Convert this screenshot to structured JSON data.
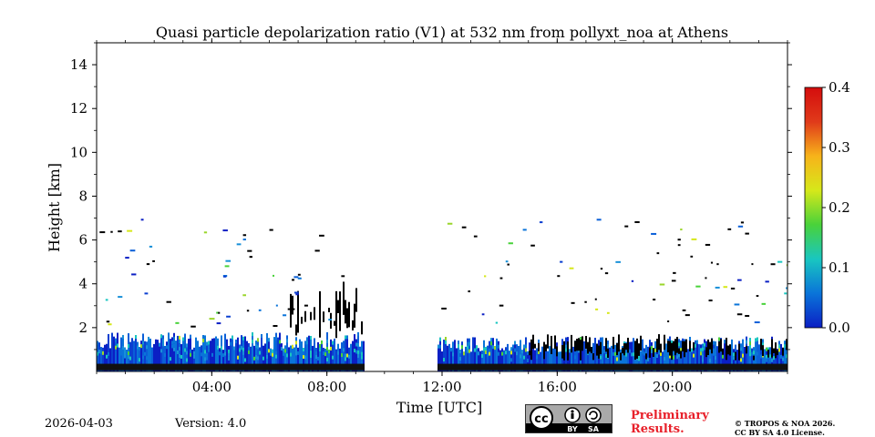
{
  "chart_data": {
    "type": "heatmap",
    "title": "Quasi particle depolarization ratio (V1) at 532 nm from pollyxt_noa at Athens",
    "xlabel": "Time [UTC]",
    "ylabel": "Height [km]",
    "xlim_hours": [
      0,
      24
    ],
    "ylim_km": [
      0,
      15
    ],
    "x_ticks": [
      {
        "hour": 4,
        "label": "04:00"
      },
      {
        "hour": 8,
        "label": "08:00"
      },
      {
        "hour": 12,
        "label": "12:00"
      },
      {
        "hour": 16,
        "label": "16:00"
      },
      {
        "hour": 20,
        "label": "20:00"
      }
    ],
    "y_ticks": [
      {
        "value": 2,
        "label": "2"
      },
      {
        "value": 4,
        "label": "4"
      },
      {
        "value": 6,
        "label": "6"
      },
      {
        "value": 8,
        "label": "8"
      },
      {
        "value": 10,
        "label": "10"
      },
      {
        "value": 12,
        "label": "12"
      },
      {
        "value": 14,
        "label": "14"
      }
    ],
    "colorbar": {
      "min": 0.0,
      "max": 0.4,
      "ticks": [
        {
          "value": 0.0,
          "label": "0.0"
        },
        {
          "value": 0.1,
          "label": "0.1"
        },
        {
          "value": 0.2,
          "label": "0.2"
        },
        {
          "value": 0.3,
          "label": "0.3"
        },
        {
          "value": 0.4,
          "label": "0.4"
        }
      ],
      "colors": [
        "#0b1fc4",
        "#0a74d9",
        "#19c6c0",
        "#49d23a",
        "#d6e81a",
        "#f7b31a",
        "#e03a1a",
        "#d40d0d"
      ]
    },
    "data_gaps_hours": [
      [
        9.3,
        11.8
      ]
    ],
    "layers": [
      {
        "name": "aerosol-layer-morning",
        "start_hour": 0.0,
        "end_hour": 9.3,
        "base_km": 0.0,
        "top_km": 1.8,
        "dominant_value": 0.03
      },
      {
        "name": "aerosol-layer-afternoon",
        "start_hour": 11.8,
        "end_hour": 24.0,
        "base_km": 0.0,
        "top_km": 1.6,
        "dominant_value": 0.03
      },
      {
        "name": "cloud-layer-morning",
        "start_hour": 6.5,
        "end_hour": 9.2,
        "base_km": 1.5,
        "top_km": 4.8,
        "dominant_value": "saturated"
      },
      {
        "name": "cloud-layer-evening",
        "start_hour": 15.0,
        "end_hour": 24.0,
        "base_km": 0.5,
        "top_km": 1.9,
        "dominant_value": "saturated"
      }
    ]
  },
  "footer": {
    "date": "2026-04-03",
    "version": "Version: 4.0",
    "preliminary_line1": "Preliminary",
    "preliminary_line2": "Results.",
    "copyright_line1": "© TROPOS & NOA 2026.",
    "copyright_line2": "CC BY SA 4.0 License.",
    "license_badge": {
      "cc": "cc",
      "by": "BY",
      "sa": "SA"
    }
  }
}
